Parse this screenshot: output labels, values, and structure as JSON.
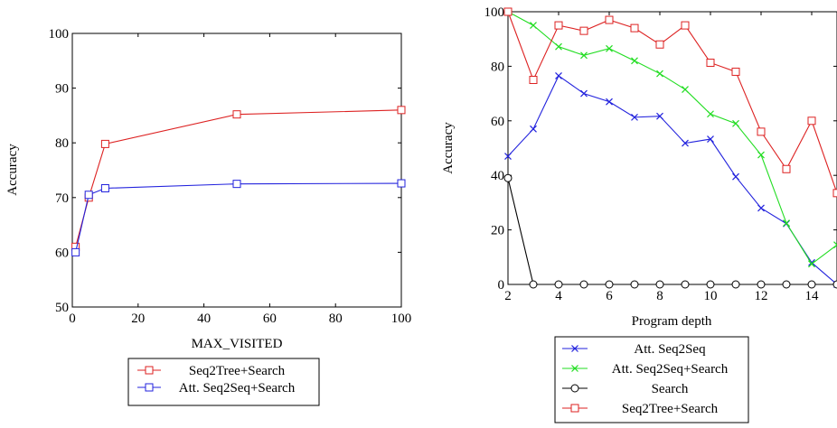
{
  "chart_data": [
    {
      "type": "line",
      "title": "",
      "xlabel": "MAX_VISITED",
      "ylabel": "Accuracy",
      "xlim": [
        0,
        100
      ],
      "ylim": [
        50,
        100
      ],
      "xticks": [
        0,
        20,
        40,
        60,
        80,
        100
      ],
      "yticks": [
        50,
        60,
        70,
        80,
        90,
        100
      ],
      "grid": false,
      "legend_position": "bottom",
      "series": [
        {
          "name": "Seq2Tree+Search",
          "color": "#dd2222",
          "marker": "square",
          "x": [
            1,
            5,
            10,
            50,
            100
          ],
          "y": [
            61.0,
            70.0,
            79.8,
            85.2,
            86.0
          ]
        },
        {
          "name": "Att. Seq2Seq+Search",
          "color": "#2222dd",
          "marker": "square",
          "x": [
            1,
            5,
            10,
            50,
            100
          ],
          "y": [
            60.0,
            70.5,
            71.7,
            72.5,
            72.6
          ]
        }
      ]
    },
    {
      "type": "line",
      "title": "",
      "xlabel": "Program depth",
      "ylabel": "Accuracy",
      "xlim": [
        2,
        15
      ],
      "ylim": [
        0,
        100
      ],
      "xticks": [
        2,
        4,
        6,
        8,
        10,
        12,
        14
      ],
      "yticks": [
        0,
        20,
        40,
        60,
        80,
        100
      ],
      "grid": false,
      "legend_position": "bottom",
      "series": [
        {
          "name": "Att. Seq2Seq",
          "color": "#2222dd",
          "marker": "x",
          "x": [
            2,
            3,
            4,
            5,
            6,
            7,
            8,
            9,
            10,
            11,
            12,
            13,
            14,
            15
          ],
          "y": [
            47,
            57,
            76.5,
            70,
            67,
            61.3,
            61.7,
            51.8,
            53.3,
            39.5,
            28,
            22.3,
            8,
            0
          ]
        },
        {
          "name": "Att. Seq2Seq+Search",
          "color": "#22dd22",
          "marker": "x",
          "x": [
            2,
            3,
            4,
            5,
            6,
            7,
            8,
            9,
            10,
            11,
            12,
            13,
            14,
            15
          ],
          "y": [
            100,
            95,
            87.2,
            84,
            86.5,
            82,
            77.3,
            71.5,
            62.5,
            59,
            47.5,
            22.5,
            7.5,
            14.5
          ]
        },
        {
          "name": "Search",
          "color": "#000000",
          "marker": "circle",
          "x": [
            2,
            3,
            4,
            5,
            6,
            7,
            8,
            9,
            10,
            11,
            12,
            13,
            14,
            15
          ],
          "y": [
            39,
            0,
            0,
            0,
            0,
            0,
            0,
            0,
            0,
            0,
            0,
            0,
            0,
            0
          ]
        },
        {
          "name": "Seq2Tree+Search",
          "color": "#dd2222",
          "marker": "square",
          "x": [
            2,
            3,
            4,
            5,
            6,
            7,
            8,
            9,
            10,
            11,
            12,
            13,
            14,
            15
          ],
          "y": [
            100,
            75,
            95,
            93,
            97,
            94,
            88,
            95,
            81.3,
            78,
            56,
            42.3,
            60,
            33.5
          ]
        }
      ]
    }
  ]
}
